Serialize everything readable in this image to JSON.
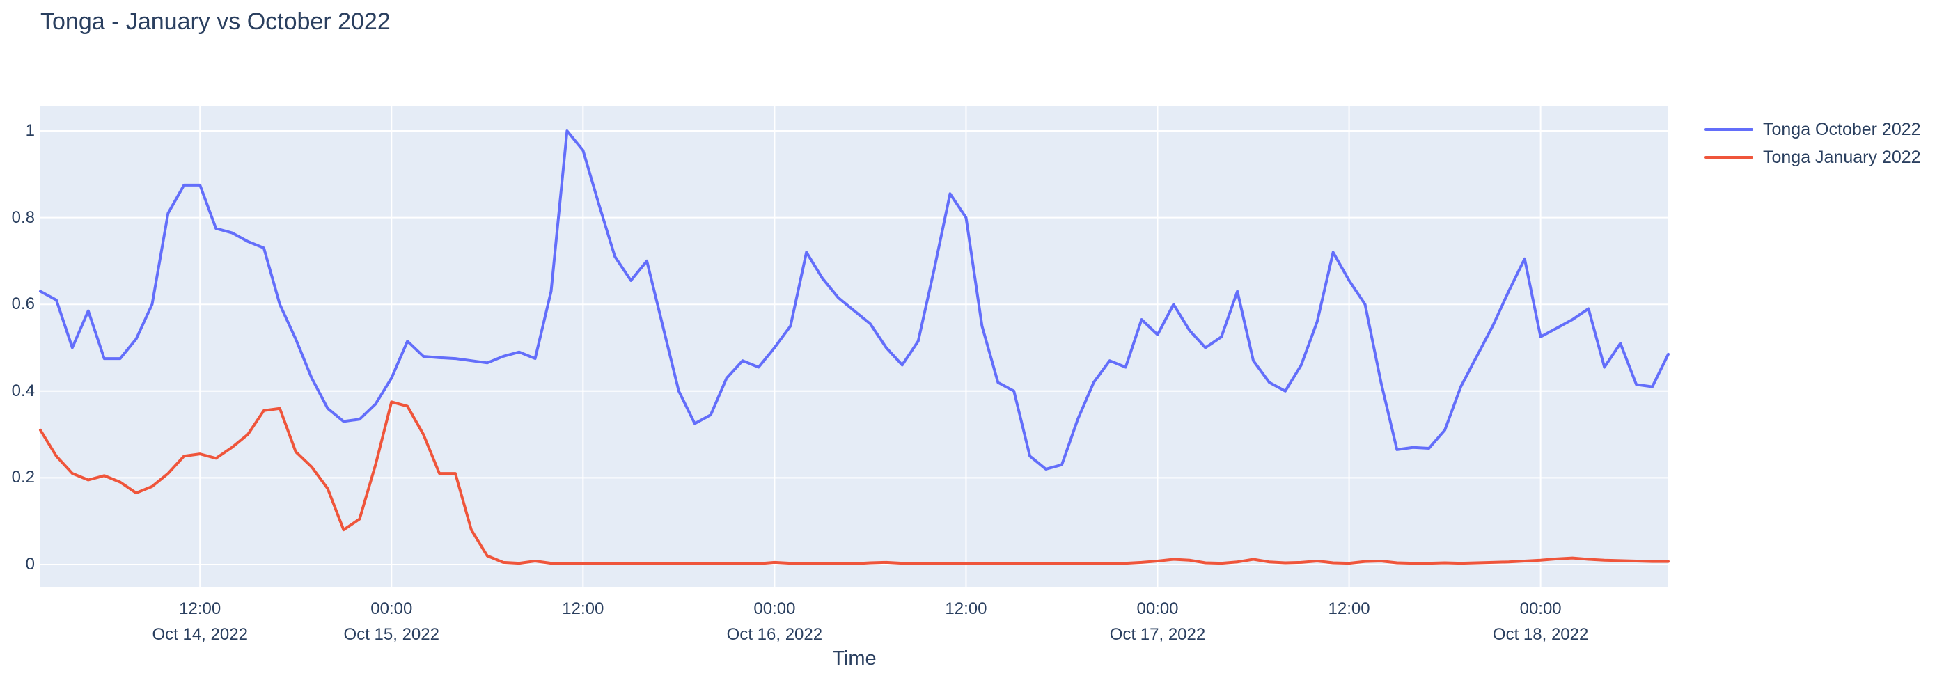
{
  "chart_data": {
    "type": "line",
    "title": "Tonga - January vs October 2022",
    "xlabel": "Time",
    "ylabel": "",
    "x_start": "2022-10-14 02:00",
    "x_step_hours": 1,
    "xlim_hours": [
      0,
      102
    ],
    "ylim": [
      -0.0514,
      1.0578
    ],
    "grid": true,
    "legend_position": "top-right-outside",
    "colors": {
      "plot_background": "#E5ECF6",
      "gridline": "#FFFFFF",
      "text": "#2A3F5F",
      "paper": "#FFFFFF"
    },
    "yticks": {
      "values": [
        0,
        0.2,
        0.4,
        0.6,
        0.8,
        1
      ],
      "labels": [
        "0",
        "0.2",
        "0.4",
        "0.6",
        "0.8",
        "1"
      ]
    },
    "xticks": [
      {
        "hour": 10,
        "time": "12:00",
        "date": "Oct 14, 2022"
      },
      {
        "hour": 22,
        "time": "00:00",
        "date": "Oct 15, 2022"
      },
      {
        "hour": 34,
        "time": "12:00",
        "date": ""
      },
      {
        "hour": 46,
        "time": "00:00",
        "date": "Oct 16, 2022"
      },
      {
        "hour": 58,
        "time": "12:00",
        "date": ""
      },
      {
        "hour": 70,
        "time": "00:00",
        "date": "Oct 17, 2022"
      },
      {
        "hour": 82,
        "time": "12:00",
        "date": ""
      },
      {
        "hour": 94,
        "time": "00:00",
        "date": "Oct 18, 2022"
      }
    ],
    "series": [
      {
        "name": "Tonga October 2022",
        "color": "#636EFA",
        "values": [
          0.63,
          0.61,
          0.5,
          0.585,
          0.475,
          0.475,
          0.52,
          0.6,
          0.81,
          0.875,
          0.875,
          0.775,
          0.765,
          0.745,
          0.73,
          0.6,
          0.52,
          0.43,
          0.36,
          0.33,
          0.335,
          0.37,
          0.43,
          0.515,
          0.48,
          0.477,
          0.475,
          0.47,
          0.465,
          0.48,
          0.49,
          0.475,
          0.63,
          1.0,
          0.955,
          0.83,
          0.71,
          0.655,
          0.7,
          0.55,
          0.4,
          0.325,
          0.345,
          0.43,
          0.47,
          0.455,
          0.5,
          0.55,
          0.72,
          0.66,
          0.615,
          0.585,
          0.555,
          0.5,
          0.46,
          0.515,
          0.68,
          0.855,
          0.8,
          0.55,
          0.42,
          0.4,
          0.25,
          0.22,
          0.23,
          0.335,
          0.42,
          0.47,
          0.455,
          0.565,
          0.53,
          0.6,
          0.54,
          0.5,
          0.525,
          0.63,
          0.47,
          0.42,
          0.4,
          0.46,
          0.56,
          0.72,
          0.655,
          0.6,
          0.42,
          0.265,
          0.27,
          0.268,
          0.31,
          0.41,
          0.48,
          0.55,
          0.63,
          0.705,
          0.525,
          0.545,
          0.565,
          0.59,
          0.455,
          0.51,
          0.415,
          0.41,
          0.485
        ]
      },
      {
        "name": "Tonga January 2022",
        "color": "#EF553B",
        "values": [
          0.31,
          0.25,
          0.21,
          0.195,
          0.205,
          0.19,
          0.165,
          0.18,
          0.21,
          0.25,
          0.255,
          0.245,
          0.27,
          0.3,
          0.355,
          0.36,
          0.26,
          0.225,
          0.175,
          0.08,
          0.105,
          0.23,
          0.375,
          0.365,
          0.3,
          0.21,
          0.21,
          0.08,
          0.02,
          0.005,
          0.003,
          0.008,
          0.003,
          0.002,
          0.002,
          0.002,
          0.002,
          0.002,
          0.002,
          0.002,
          0.002,
          0.002,
          0.002,
          0.002,
          0.003,
          0.002,
          0.005,
          0.003,
          0.002,
          0.002,
          0.002,
          0.002,
          0.004,
          0.005,
          0.003,
          0.002,
          0.002,
          0.002,
          0.003,
          0.002,
          0.002,
          0.002,
          0.002,
          0.003,
          0.002,
          0.002,
          0.003,
          0.002,
          0.003,
          0.005,
          0.008,
          0.012,
          0.01,
          0.004,
          0.003,
          0.006,
          0.012,
          0.006,
          0.004,
          0.005,
          0.008,
          0.004,
          0.003,
          0.007,
          0.008,
          0.004,
          0.003,
          0.003,
          0.004,
          0.003,
          0.004,
          0.005,
          0.006,
          0.008,
          0.01,
          0.013,
          0.015,
          0.012,
          0.01,
          0.009,
          0.008,
          0.007,
          0.007
        ]
      }
    ]
  }
}
